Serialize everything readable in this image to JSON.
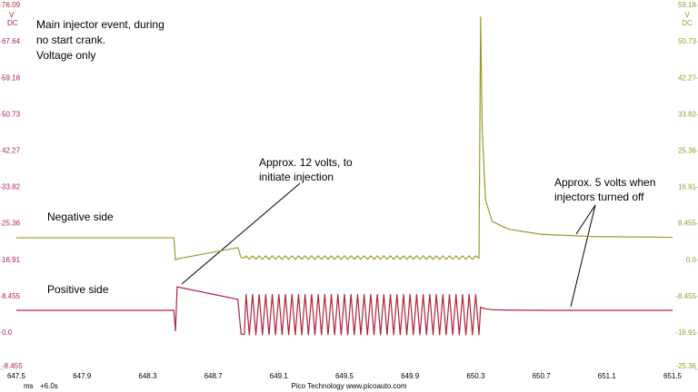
{
  "chart_data": {
    "type": "line",
    "annotations": {
      "main": [
        "Main injector event, during",
        "no start crank.",
        "Voltage only"
      ],
      "negative": "Negative side",
      "positive": "Positive side",
      "twelve": [
        "Approx. 12 volts, to",
        "initiate injection"
      ],
      "five": [
        "Approx. 5 volts when",
        "injectors turned off"
      ]
    },
    "y_unit": [
      "V",
      "DC"
    ],
    "y2_unit": [
      "V",
      "DC"
    ],
    "x_unit": "ms",
    "x_offset": "+6.0s",
    "footer": "Pico Technology   www.picoauto.com",
    "x": [
      647.5,
      648.46,
      648.47,
      648.48,
      648.85,
      648.87,
      648.89,
      648.9,
      648.92,
      648.94,
      648.96,
      648.98,
      649,
      649.02,
      649.04,
      649.06,
      649.08,
      649.1,
      649.12,
      649.14,
      649.16,
      649.18,
      649.2,
      649.22,
      649.24,
      649.26,
      649.28,
      649.3,
      649.32,
      649.34,
      649.36,
      649.38,
      649.4,
      649.42,
      649.44,
      649.46,
      649.48,
      649.5,
      649.52,
      649.54,
      649.56,
      649.58,
      649.6,
      649.62,
      649.64,
      649.66,
      649.68,
      649.7,
      649.72,
      649.74,
      649.76,
      649.78,
      649.8,
      649.82,
      649.84,
      649.86,
      649.88,
      649.9,
      649.92,
      649.94,
      649.96,
      649.98,
      650,
      650.02,
      650.04,
      650.06,
      650.08,
      650.1,
      650.12,
      650.14,
      650.16,
      650.18,
      650.2,
      650.22,
      650.24,
      650.26,
      650.28,
      650.3,
      650.32,
      650.33,
      650.34,
      650.36,
      650.4,
      650.5,
      650.7,
      651.0,
      651.5
    ],
    "series": [
      {
        "name": "Positive side",
        "color": "#b0243c",
        "axis": "y",
        "values": [
          5.25,
          5.25,
          0.4,
          10.7,
          7.8,
          -0.3,
          -0.3,
          9,
          -0.5,
          9,
          -0.5,
          9,
          -0.5,
          9,
          -0.5,
          9,
          -0.5,
          9,
          -0.5,
          9,
          -0.5,
          9,
          -0.5,
          9,
          -0.5,
          9,
          -0.5,
          9,
          -0.5,
          9,
          -0.5,
          9,
          -0.5,
          9,
          -0.5,
          9,
          -0.5,
          9,
          -0.5,
          9,
          -0.5,
          9,
          -0.5,
          9,
          -0.5,
          9,
          -0.5,
          9,
          -0.5,
          9,
          -0.5,
          9,
          -0.5,
          9,
          -0.5,
          9,
          -0.5,
          9,
          -0.5,
          9,
          -0.5,
          9,
          -0.5,
          9,
          -0.5,
          9,
          -0.5,
          9,
          -0.5,
          9,
          -0.5,
          9,
          -0.5,
          9,
          -0.5,
          9,
          -0.5,
          9,
          -0.5,
          6,
          5.8,
          5.6,
          5.4,
          5.3,
          5.25,
          5.25,
          5.25
        ]
      },
      {
        "name": "Negative side",
        "color": "#9c9a2c",
        "axis": "y2",
        "values": [
          5.2,
          5.2,
          0.1,
          0.3,
          2.9,
          0.6,
          0.5,
          1,
          0.2,
          1,
          0.2,
          1,
          0.2,
          1,
          0.2,
          1,
          0.2,
          1,
          0.2,
          1,
          0.2,
          1,
          0.2,
          1,
          0.2,
          1,
          0.2,
          1,
          0.2,
          1,
          0.2,
          1,
          0.2,
          1,
          0.2,
          1,
          0.2,
          1,
          0.2,
          1,
          0.2,
          1,
          0.2,
          1,
          0.2,
          1,
          0.2,
          1,
          0.2,
          1,
          0.2,
          1,
          0.2,
          1,
          0.2,
          1,
          0.2,
          1,
          0.2,
          1,
          0.2,
          1,
          0.2,
          1,
          0.2,
          1,
          0.2,
          1,
          0.2,
          1,
          0.2,
          1,
          0.2,
          1,
          0.2,
          1,
          0.2,
          1,
          0.5,
          56.6,
          30,
          14,
          9,
          7.2,
          6,
          5.5,
          5.3
        ]
      }
    ],
    "xlim": [
      647.5,
      651.5
    ],
    "xticks": [
      647.5,
      647.9,
      648.3,
      648.7,
      649.1,
      649.5,
      649.9,
      650.3,
      650.7,
      651.1,
      651.5
    ],
    "ylim": [
      -8.455,
      76.09
    ],
    "yticks": [
      -8.455,
      {
        "value": 0,
        "label": "0.0"
      },
      8.455,
      16.91,
      25.36,
      33.82,
      42.27,
      50.73,
      59.18,
      67.64,
      76.09
    ],
    "y2lim": [
      -25.36,
      59.18
    ],
    "y2ticks": [
      -25.36,
      -16.91,
      -8.455,
      {
        "value": 0,
        "label": "0.0"
      },
      8.455,
      16.91,
      25.36,
      33.82,
      42.27,
      50.73,
      59.18
    ],
    "grid": false
  }
}
